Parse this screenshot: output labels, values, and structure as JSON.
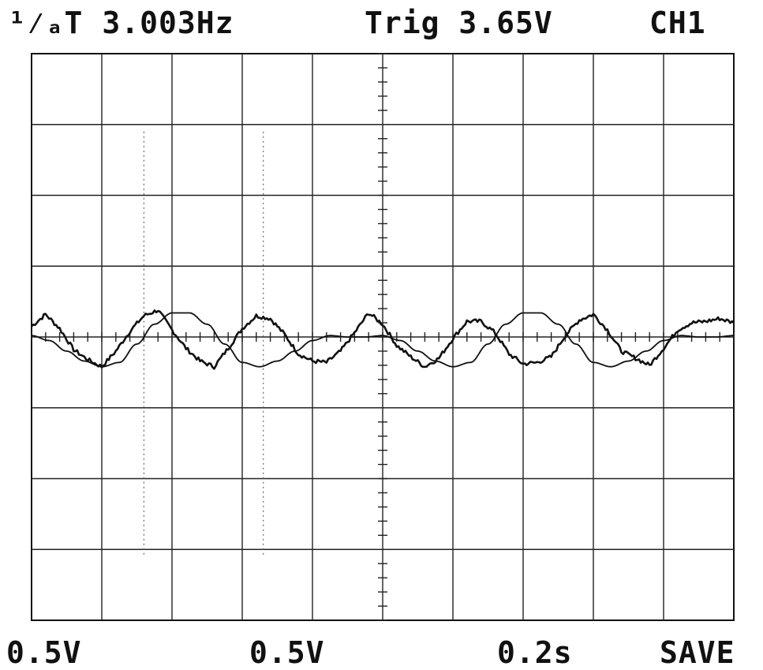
{
  "header": {
    "measurement": "¹⁄ₐT 3.003Hz",
    "trigger": "Trig 3.65V",
    "channel": "CH1"
  },
  "footer": {
    "ch1_scale": "0.5V",
    "ch2_scale": "0.5V",
    "timebase": "0.2s",
    "mode": "SAVE"
  },
  "chart_data": {
    "type": "line",
    "title": "",
    "xlabel": "",
    "ylabel": "",
    "grid": true,
    "divisions": {
      "x": 10,
      "y": 8
    },
    "x_unit": "div",
    "y_unit": "div",
    "xlim": [
      0,
      10
    ],
    "ylim": [
      -4,
      4
    ],
    "series": [
      {
        "style": "smooth",
        "color": "#111111",
        "x": [
          0,
          0.25,
          0.5,
          0.75,
          1.0,
          1.25,
          1.5,
          1.75,
          2.0,
          2.25,
          2.5,
          2.75,
          3.0,
          3.25,
          3.5,
          3.75,
          4.0,
          4.25,
          4.5,
          4.75,
          5.0,
          5.25,
          5.5,
          5.75,
          6.0,
          6.25,
          6.5,
          6.75,
          7.0,
          7.25,
          7.5,
          7.75,
          8.0,
          8.25,
          8.5,
          8.75,
          9.0,
          9.25,
          9.5,
          9.75,
          10.0
        ],
        "y": [
          0.02,
          -0.05,
          -0.2,
          -0.34,
          -0.42,
          -0.36,
          -0.1,
          0.18,
          0.34,
          0.34,
          0.18,
          -0.1,
          -0.36,
          -0.42,
          -0.34,
          -0.2,
          -0.05,
          0.02,
          0.0,
          0.0,
          0.02,
          -0.05,
          -0.2,
          -0.34,
          -0.42,
          -0.36,
          -0.1,
          0.18,
          0.34,
          0.34,
          0.18,
          -0.1,
          -0.36,
          -0.42,
          -0.34,
          -0.2,
          -0.05,
          0.02,
          0.0,
          0.0,
          0.02
        ]
      },
      {
        "style": "noisy",
        "color": "#111111",
        "x": [
          0,
          0.2,
          0.4,
          0.6,
          0.8,
          1.0,
          1.2,
          1.4,
          1.6,
          1.8,
          2.0,
          2.2,
          2.4,
          2.6,
          2.8,
          3.0,
          3.2,
          3.4,
          3.6,
          3.8,
          4.0,
          4.2,
          4.4,
          4.6,
          4.8,
          5.0,
          5.2,
          5.4,
          5.6,
          5.8,
          6.0,
          6.2,
          6.4,
          6.6,
          6.8,
          7.0,
          7.2,
          7.4,
          7.6,
          7.8,
          8.0,
          8.2,
          8.4,
          8.6,
          8.8,
          9.0,
          9.2,
          9.4,
          9.6,
          9.8,
          10.0
        ],
        "y": [
          0.15,
          0.32,
          0.12,
          -0.18,
          -0.32,
          -0.42,
          -0.2,
          0.08,
          0.3,
          0.38,
          0.1,
          -0.16,
          -0.34,
          -0.42,
          -0.16,
          0.12,
          0.3,
          0.26,
          0.04,
          -0.24,
          -0.34,
          -0.36,
          -0.2,
          0.06,
          0.34,
          0.18,
          -0.12,
          -0.28,
          -0.42,
          -0.3,
          -0.02,
          0.22,
          0.22,
          0.06,
          -0.24,
          -0.38,
          -0.36,
          -0.28,
          0.02,
          0.24,
          0.32,
          0.1,
          -0.2,
          -0.3,
          -0.4,
          -0.16,
          0.1,
          0.2,
          0.22,
          0.26,
          0.2
        ]
      }
    ]
  }
}
